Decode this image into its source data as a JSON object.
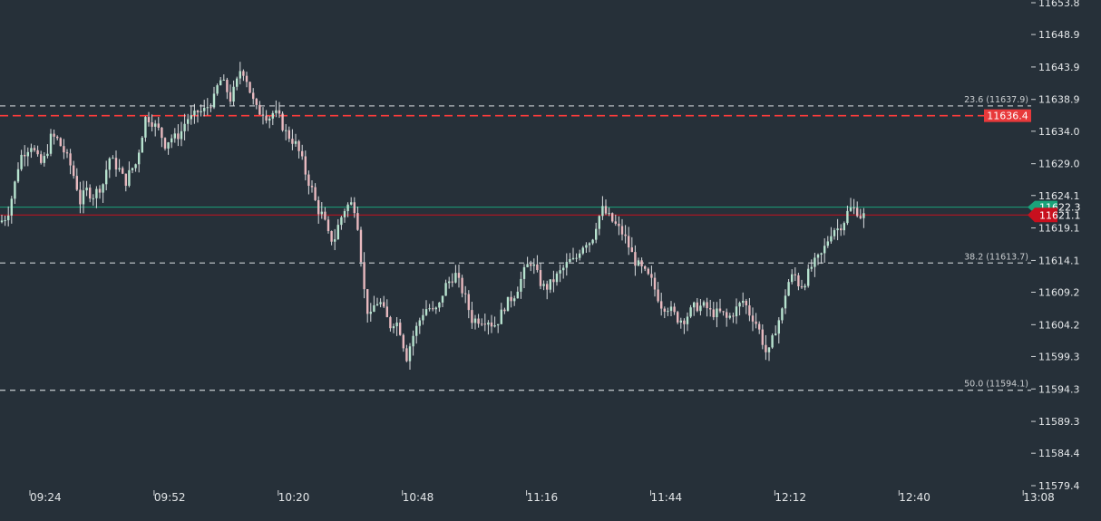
{
  "chart_data": {
    "type": "candlestick",
    "x_ticks": [
      "09:24",
      "09:52",
      "10:20",
      "10:48",
      "11:16",
      "11:44",
      "12:12",
      "12:40",
      "13:08"
    ],
    "y_ticks": [
      "11653.8",
      "11648.9",
      "11643.9",
      "11638.9",
      "11634.0",
      "11629.0",
      "11624.1",
      "11619.1",
      "11614.1",
      "11609.2",
      "11604.2",
      "11599.3",
      "11594.3",
      "11589.3",
      "11584.4",
      "11579.4"
    ],
    "ylim": [
      11579.4,
      11653.8
    ],
    "fib_levels": [
      {
        "label": "23.6 (11637.9)",
        "value": 11637.9
      },
      {
        "label": "38.2 (11613.7)",
        "value": 11613.7
      },
      {
        "label": "50.0 (11594.1)",
        "value": 11594.1
      }
    ],
    "resistance_line": {
      "value": 11636.4,
      "label": "11636.4",
      "color": "#ff3b3b"
    },
    "bid_line": {
      "value": 11622.3,
      "label": "11622.3",
      "color": "#1aa37a"
    },
    "last_price": {
      "value": 11621.1,
      "label": "11621.1",
      "color": "#c8101e"
    },
    "candle_colors": {
      "up": "#b7e3cf",
      "down": "#e8b9bf",
      "wick": "#d9dde0"
    },
    "close_path": [
      [
        0,
        11620
      ],
      [
        8,
        11621
      ],
      [
        15,
        11625
      ],
      [
        22,
        11630
      ],
      [
        28,
        11631
      ],
      [
        35,
        11632
      ],
      [
        40,
        11630
      ],
      [
        45,
        11629
      ],
      [
        50,
        11630
      ],
      [
        56,
        11633
      ],
      [
        62,
        11633
      ],
      [
        70,
        11631
      ],
      [
        77,
        11629
      ],
      [
        84,
        11626
      ],
      [
        88,
        11623
      ],
      [
        95,
        11625
      ],
      [
        102,
        11624
      ],
      [
        108,
        11625
      ],
      [
        114,
        11626
      ],
      [
        120,
        11630
      ],
      [
        126,
        11629
      ],
      [
        132,
        11628
      ],
      [
        138,
        11626
      ],
      [
        144,
        11628
      ],
      [
        150,
        11629
      ],
      [
        156,
        11633
      ],
      [
        160,
        11636
      ],
      [
        165,
        11636
      ],
      [
        170,
        11635
      ],
      [
        176,
        11634
      ],
      [
        182,
        11632
      ],
      [
        188,
        11633
      ],
      [
        194,
        11633
      ],
      [
        200,
        11634
      ],
      [
        206,
        11636
      ],
      [
        212,
        11636
      ],
      [
        218,
        11637
      ],
      [
        224,
        11637
      ],
      [
        230,
        11638
      ],
      [
        236,
        11639
      ],
      [
        242,
        11642
      ],
      [
        248,
        11641
      ],
      [
        254,
        11639
      ],
      [
        260,
        11641
      ],
      [
        266,
        11644
      ],
      [
        272,
        11642
      ],
      [
        278,
        11639
      ],
      [
        284,
        11637
      ],
      [
        290,
        11637
      ],
      [
        296,
        11636
      ],
      [
        302,
        11637
      ],
      [
        308,
        11636
      ],
      [
        314,
        11634
      ],
      [
        320,
        11633
      ],
      [
        326,
        11632
      ],
      [
        332,
        11630
      ],
      [
        338,
        11627
      ],
      [
        344,
        11625
      ],
      [
        350,
        11622
      ],
      [
        356,
        11621
      ],
      [
        362,
        11618
      ],
      [
        368,
        11617
      ],
      [
        374,
        11620
      ],
      [
        380,
        11622
      ],
      [
        386,
        11623
      ],
      [
        392,
        11622
      ],
      [
        396,
        11618
      ],
      [
        400,
        11611
      ],
      [
        404,
        11607
      ],
      [
        408,
        11605
      ],
      [
        412,
        11607
      ],
      [
        418,
        11608
      ],
      [
        424,
        11606
      ],
      [
        430,
        11604
      ],
      [
        436,
        11605
      ],
      [
        442,
        11603
      ],
      [
        448,
        11599
      ],
      [
        454,
        11602
      ],
      [
        460,
        11604
      ],
      [
        466,
        11606
      ],
      [
        472,
        11607
      ],
      [
        478,
        11606
      ],
      [
        484,
        11607
      ],
      [
        490,
        11610
      ],
      [
        496,
        11611
      ],
      [
        502,
        11612
      ],
      [
        508,
        11610
      ],
      [
        514,
        11608
      ],
      [
        520,
        11605
      ],
      [
        526,
        11605
      ],
      [
        532,
        11605
      ],
      [
        538,
        11605
      ],
      [
        544,
        11604
      ],
      [
        550,
        11605
      ],
      [
        556,
        11607
      ],
      [
        562,
        11608
      ],
      [
        568,
        11609
      ],
      [
        574,
        11611
      ],
      [
        580,
        11613
      ],
      [
        586,
        11614
      ],
      [
        592,
        11612
      ],
      [
        598,
        11610
      ],
      [
        604,
        11610
      ],
      [
        610,
        11611
      ],
      [
        616,
        11612
      ],
      [
        622,
        11613
      ],
      [
        628,
        11614
      ],
      [
        634,
        11614
      ],
      [
        640,
        11616
      ],
      [
        646,
        11617
      ],
      [
        652,
        11617
      ],
      [
        658,
        11620
      ],
      [
        664,
        11622
      ],
      [
        670,
        11621
      ],
      [
        676,
        11620
      ],
      [
        682,
        11619
      ],
      [
        688,
        11618
      ],
      [
        694,
        11616
      ],
      [
        700,
        11614
      ],
      [
        706,
        11613
      ],
      [
        712,
        11612
      ],
      [
        718,
        11611
      ],
      [
        724,
        11609
      ],
      [
        730,
        11607
      ],
      [
        736,
        11607
      ],
      [
        742,
        11606
      ],
      [
        748,
        11605
      ],
      [
        754,
        11605
      ],
      [
        760,
        11606
      ],
      [
        766,
        11607
      ],
      [
        772,
        11607
      ],
      [
        778,
        11607
      ],
      [
        784,
        11606
      ],
      [
        790,
        11606
      ],
      [
        796,
        11606
      ],
      [
        802,
        11605
      ],
      [
        808,
        11606
      ],
      [
        814,
        11607
      ],
      [
        820,
        11608
      ],
      [
        826,
        11606
      ],
      [
        832,
        11605
      ],
      [
        838,
        11603
      ],
      [
        844,
        11600
      ],
      [
        848,
        11600
      ],
      [
        852,
        11602
      ],
      [
        856,
        11604
      ],
      [
        862,
        11606
      ],
      [
        866,
        11609
      ],
      [
        870,
        11611
      ],
      [
        876,
        11612
      ],
      [
        882,
        11610
      ],
      [
        888,
        11611
      ],
      [
        894,
        11613
      ],
      [
        900,
        11614
      ],
      [
        906,
        11615
      ],
      [
        912,
        11617
      ],
      [
        918,
        11619
      ],
      [
        924,
        11619
      ],
      [
        930,
        11620
      ],
      [
        936,
        11622
      ],
      [
        940,
        11622
      ],
      [
        944,
        11622
      ],
      [
        948,
        11621
      ],
      [
        953,
        11621
      ]
    ]
  }
}
